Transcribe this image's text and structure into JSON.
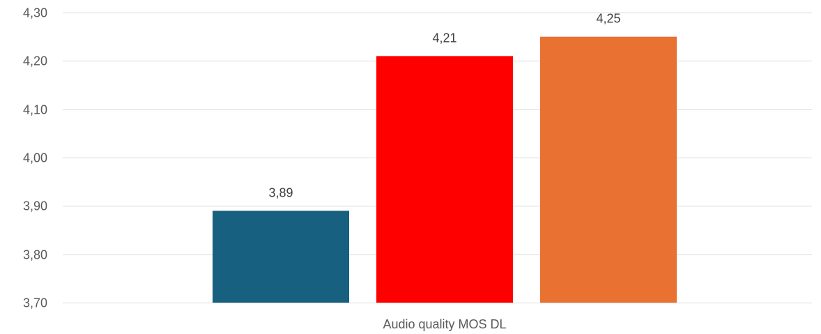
{
  "chart_data": {
    "type": "bar",
    "categories": [
      "Audio quality MOS DL"
    ],
    "series": [
      {
        "values": [
          3.89
        ],
        "color": "#17607f",
        "label": "3,89"
      },
      {
        "values": [
          4.21
        ],
        "color": "#ff0000",
        "label": "4,21"
      },
      {
        "values": [
          4.25
        ],
        "color": "#e97132",
        "label": "4,25"
      }
    ],
    "ylim": [
      3.7,
      4.3
    ],
    "yticks": [
      3.7,
      3.8,
      3.9,
      4.0,
      4.1,
      4.2,
      4.3
    ],
    "ytick_labels": [
      "3,70",
      "3,80",
      "3,90",
      "4,00",
      "4,10",
      "4,20",
      "4,30"
    ],
    "grid": true,
    "title": "",
    "xlabel": "",
    "ylabel": ""
  }
}
